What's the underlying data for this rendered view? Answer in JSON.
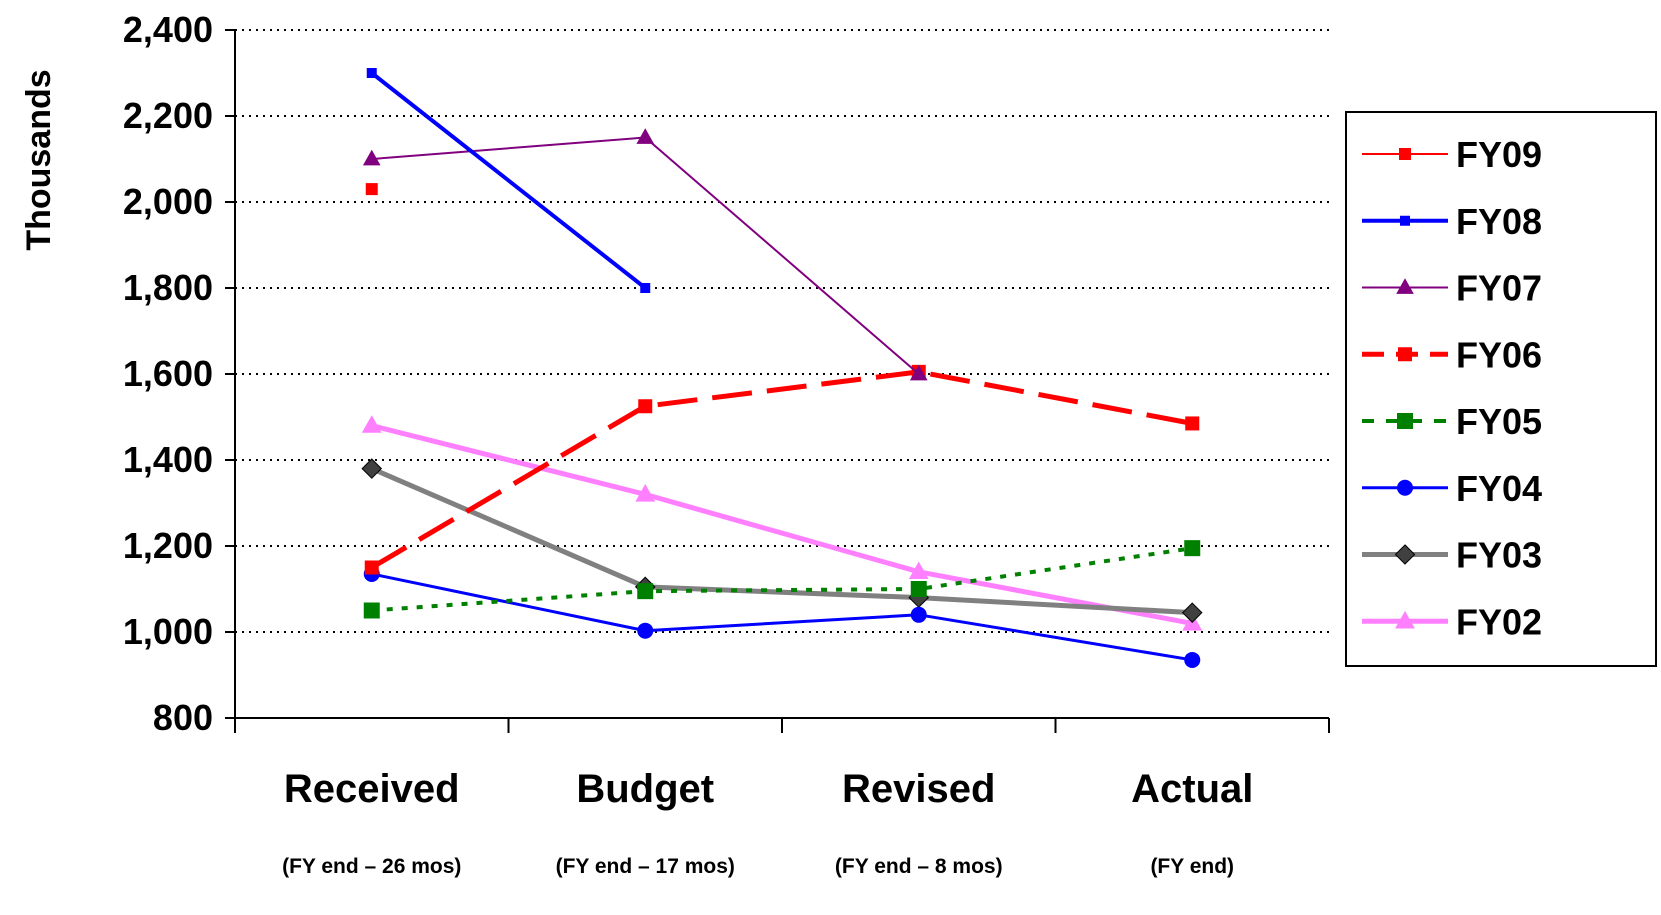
{
  "chart_data": {
    "type": "line",
    "ylabel": "Thousands",
    "ylim": [
      800,
      2400
    ],
    "yticks": [
      800,
      1000,
      1200,
      1400,
      1600,
      1800,
      2000,
      2200,
      2400
    ],
    "ytick_labels": [
      "800",
      "1,000",
      "1,200",
      "1,400",
      "1,600",
      "1,800",
      "2,000",
      "2,200",
      "2,400"
    ],
    "categories": [
      "Received",
      "Budget",
      "Revised",
      "Actual"
    ],
    "category_sublabels": [
      "(FY end – 26 mos)",
      "(FY end – 17 mos)",
      "(FY end – 8 mos)",
      "(FY end)"
    ],
    "grid": "horizontal dotted",
    "legend_position": "right",
    "series": [
      {
        "name": "FY09",
        "values": [
          2030,
          null,
          null,
          null
        ],
        "color": "#FF0000",
        "marker": "square",
        "dash": "solid",
        "width": 2
      },
      {
        "name": "FY08",
        "values": [
          2300,
          1800,
          null,
          null
        ],
        "color": "#0000FF",
        "marker": "square",
        "dash": "solid",
        "width": 4
      },
      {
        "name": "FY07",
        "values": [
          2100,
          2150,
          1600,
          null
        ],
        "color": "#800080",
        "marker": "triangle",
        "dash": "solid",
        "width": 2
      },
      {
        "name": "FY06",
        "values": [
          1150,
          1525,
          1605,
          1485
        ],
        "color": "#FF0000",
        "marker": "square",
        "dash": "longdash",
        "width": 5
      },
      {
        "name": "FY05",
        "values": [
          1050,
          1095,
          1100,
          1195
        ],
        "color": "#008000",
        "marker": "square",
        "dash": "dotted",
        "width": 4
      },
      {
        "name": "FY04",
        "values": [
          1135,
          1003,
          1040,
          935
        ],
        "color": "#0000FF",
        "marker": "circle",
        "dash": "solid",
        "width": 3
      },
      {
        "name": "FY03",
        "values": [
          1380,
          1105,
          1080,
          1045
        ],
        "color": "#808080",
        "marker": "diamond",
        "dash": "solid",
        "width": 5
      },
      {
        "name": "FY02",
        "values": [
          1480,
          1320,
          1140,
          1020
        ],
        "color": "#FF80FF",
        "marker": "triangle",
        "dash": "solid",
        "width": 5
      }
    ]
  }
}
